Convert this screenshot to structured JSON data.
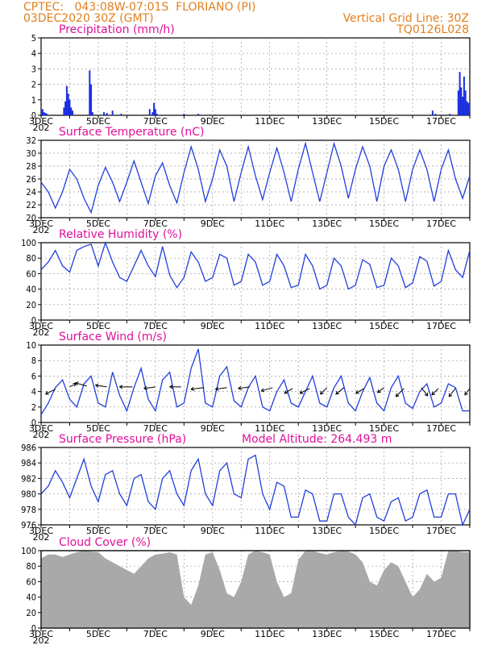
{
  "header": {
    "line1_left": "CPTEC:   043:08W-07:01S  FLORIANO (PI)",
    "line2_left": "03DEC2020 30Z (GMT)",
    "line2_right": "Vertical Grid Line: 30Z",
    "line3_right": "TQ0126L028"
  },
  "colors": {
    "header": "#e08020",
    "title": "#e0109a",
    "line": "#1f3fdc",
    "bar": "#1a2fe0",
    "cloud": "#a9a9a9"
  },
  "x_tick_labels": [
    "3DEC",
    "5DEC",
    "7DEC",
    "9DEC",
    "11DEC",
    "13DEC",
    "15DEC",
    "17DEC"
  ],
  "x_stub": "202",
  "chart_data": [
    {
      "type": "bar",
      "title": "Precipitation (mm/h)",
      "ylim": [
        0,
        5
      ],
      "yticks": [
        "0",
        "1",
        "2",
        "3",
        "4",
        "5"
      ],
      "xlim": [
        3.0,
        18.0
      ],
      "x": [
        3.05,
        3.1,
        3.15,
        3.2,
        3.8,
        3.85,
        3.9,
        3.95,
        4.0,
        4.05,
        4.1,
        4.7,
        4.75,
        4.8,
        5.2,
        5.3,
        5.5,
        5.8,
        6.8,
        6.9,
        6.95,
        7.0,
        7.05,
        8.0,
        8.5,
        9.1,
        16.7,
        16.8,
        17.3,
        17.6,
        17.65,
        17.7,
        17.75,
        17.8,
        17.85,
        17.9,
        17.95
      ],
      "values": [
        0.4,
        0.2,
        0.15,
        0.1,
        0.5,
        0.9,
        1.9,
        1.4,
        1.0,
        0.5,
        0.3,
        2.9,
        2.0,
        0.2,
        0.2,
        0.15,
        0.3,
        0.1,
        0.4,
        0.2,
        0.8,
        0.4,
        0.1,
        0.1,
        0.1,
        0.05,
        0.3,
        0.1,
        0.1,
        1.6,
        2.8,
        1.8,
        1.2,
        2.5,
        1.6,
        0.9,
        0.8
      ]
    },
    {
      "type": "line",
      "title": "Surface Temperature (nC)",
      "ylim": [
        20,
        32
      ],
      "yticks": [
        "20",
        "22",
        "24",
        "26",
        "28",
        "30",
        "32"
      ],
      "xlim": [
        3.0,
        18.0
      ],
      "x": [
        3.0,
        3.25,
        3.5,
        3.75,
        4.0,
        4.25,
        4.5,
        4.75,
        5.0,
        5.25,
        5.5,
        5.75,
        6.0,
        6.25,
        6.5,
        6.75,
        7.0,
        7.25,
        7.5,
        7.75,
        8.0,
        8.25,
        8.5,
        8.75,
        9.0,
        9.25,
        9.5,
        9.75,
        10.0,
        10.25,
        10.5,
        10.75,
        11.0,
        11.25,
        11.5,
        11.75,
        12.0,
        12.25,
        12.5,
        12.75,
        13.0,
        13.25,
        13.5,
        13.75,
        14.0,
        14.25,
        14.5,
        14.75,
        15.0,
        15.25,
        15.5,
        15.75,
        16.0,
        16.25,
        16.5,
        16.75,
        17.0,
        17.25,
        17.5,
        17.75,
        18.0
      ],
      "values": [
        25.5,
        24,
        21.5,
        24,
        27.5,
        26,
        23,
        20.8,
        25,
        27.8,
        25.5,
        22.5,
        25.5,
        28.8,
        25.5,
        22.2,
        26.5,
        28.5,
        25,
        22.3,
        27,
        31,
        27.5,
        22.5,
        26,
        30.5,
        28,
        22.5,
        27,
        31,
        26.5,
        22.8,
        27,
        30.8,
        27,
        22.5,
        27.5,
        31.5,
        27,
        22.5,
        27,
        31.5,
        28,
        23,
        27.5,
        31,
        28,
        22.5,
        28,
        30.5,
        27.5,
        22.5,
        27.5,
        30.5,
        27.5,
        22.5,
        27.5,
        30.5,
        26,
        23,
        26.5
      ]
    },
    {
      "type": "line",
      "title": "Relative Humidity (%)",
      "ylim": [
        0,
        100
      ],
      "yticks": [
        "0",
        "20",
        "40",
        "60",
        "80",
        "100"
      ],
      "xlim": [
        3.0,
        18.0
      ],
      "x": [
        3.0,
        3.25,
        3.5,
        3.75,
        4.0,
        4.25,
        4.5,
        4.75,
        5.0,
        5.25,
        5.5,
        5.75,
        6.0,
        6.25,
        6.5,
        6.75,
        7.0,
        7.25,
        7.5,
        7.75,
        8.0,
        8.25,
        8.5,
        8.75,
        9.0,
        9.25,
        9.5,
        9.75,
        10.0,
        10.25,
        10.5,
        10.75,
        11.0,
        11.25,
        11.5,
        11.75,
        12.0,
        12.25,
        12.5,
        12.75,
        13.0,
        13.25,
        13.5,
        13.75,
        14.0,
        14.25,
        14.5,
        14.75,
        15.0,
        15.25,
        15.5,
        15.75,
        16.0,
        16.25,
        16.5,
        16.75,
        17.0,
        17.25,
        17.5,
        17.75,
        18.0
      ],
      "values": [
        65,
        75,
        90,
        70,
        62,
        90,
        95,
        98,
        70,
        100,
        75,
        55,
        50,
        70,
        90,
        70,
        56,
        95,
        58,
        42,
        55,
        88,
        75,
        50,
        55,
        85,
        80,
        45,
        50,
        85,
        75,
        45,
        50,
        85,
        70,
        42,
        45,
        85,
        70,
        40,
        45,
        80,
        70,
        40,
        45,
        78,
        72,
        42,
        45,
        80,
        70,
        42,
        48,
        82,
        76,
        44,
        50,
        90,
        65,
        55,
        90
      ]
    },
    {
      "type": "line",
      "title": "Surface Wind (m/s)",
      "ylim": [
        0,
        10
      ],
      "yticks": [
        "0",
        "2",
        "4",
        "6",
        "8",
        "10"
      ],
      "xlim": [
        3.0,
        18.0
      ],
      "x": [
        3.0,
        3.25,
        3.5,
        3.75,
        4.0,
        4.25,
        4.5,
        4.75,
        5.0,
        5.25,
        5.5,
        5.75,
        6.0,
        6.25,
        6.5,
        6.75,
        7.0,
        7.25,
        7.5,
        7.75,
        8.0,
        8.25,
        8.5,
        8.75,
        9.0,
        9.25,
        9.5,
        9.75,
        10.0,
        10.25,
        10.5,
        10.75,
        11.0,
        11.25,
        11.5,
        11.75,
        12.0,
        12.25,
        12.5,
        12.75,
        13.0,
        13.25,
        13.5,
        13.75,
        14.0,
        14.25,
        14.5,
        14.75,
        15.0,
        15.25,
        15.5,
        15.75,
        16.0,
        16.25,
        16.5,
        16.75,
        17.0,
        17.25,
        17.5,
        17.75,
        18.0
      ],
      "values": [
        1,
        2.5,
        4.5,
        5.5,
        3,
        2,
        5,
        6,
        2.5,
        2,
        6.5,
        3.5,
        1.5,
        4.5,
        7,
        3,
        1.5,
        5.5,
        6.5,
        2,
        2.5,
        7,
        9.5,
        2.5,
        2,
        6,
        7.2,
        2.8,
        2,
        4.5,
        6,
        2,
        1.5,
        4,
        5.5,
        2.5,
        2,
        4,
        6,
        2.5,
        2,
        4.5,
        6,
        2.5,
        1.5,
        4,
        5.8,
        2.5,
        1.5,
        4.5,
        6,
        2.5,
        1.8,
        4,
        5,
        2,
        2.5,
        5,
        4.5,
        1.5,
        1.5
      ],
      "barb_x": [
        3.5,
        4.0,
        4.6,
        5.3,
        6.2,
        7.0,
        7.9,
        8.7,
        9.5,
        10.3,
        11.1,
        11.8,
        12.4,
        13.0,
        13.6,
        14.3,
        15.0,
        15.7,
        16.3,
        16.9,
        17.5,
        18.0
      ],
      "barb_y": [
        4.3,
        4.6,
        4.7,
        4.6,
        4.6,
        4.6,
        4.6,
        4.5,
        4.5,
        4.6,
        4.5,
        4.4,
        4.4,
        4.5,
        4.5,
        4.4,
        4.5,
        4.4,
        4.5,
        4.4,
        4.4,
        4.4
      ],
      "barb_dx_px": [
        -12,
        8,
        -14,
        -14,
        -16,
        -14,
        -14,
        -16,
        -14,
        -14,
        -14,
        -10,
        -12,
        -8,
        -10,
        -10,
        -8,
        -10,
        8,
        -8,
        -8,
        -6
      ],
      "barb_dy_px": [
        6,
        -4,
        -4,
        -2,
        0,
        2,
        0,
        2,
        2,
        2,
        4,
        6,
        6,
        8,
        8,
        6,
        6,
        10,
        10,
        8,
        10,
        8
      ]
    },
    {
      "type": "line",
      "title": "Surface Pressure (hPa)",
      "annotation": "Model Altitude: 264.493 m",
      "ylim": [
        976,
        986
      ],
      "yticks": [
        "976",
        "978",
        "980",
        "982",
        "984",
        "986"
      ],
      "xlim": [
        3.0,
        18.0
      ],
      "x": [
        3.0,
        3.25,
        3.5,
        3.75,
        4.0,
        4.25,
        4.5,
        4.75,
        5.0,
        5.25,
        5.5,
        5.75,
        6.0,
        6.25,
        6.5,
        6.75,
        7.0,
        7.25,
        7.5,
        7.75,
        8.0,
        8.25,
        8.5,
        8.75,
        9.0,
        9.25,
        9.5,
        9.75,
        10.0,
        10.25,
        10.5,
        10.75,
        11.0,
        11.25,
        11.5,
        11.75,
        12.0,
        12.25,
        12.5,
        12.75,
        13.0,
        13.25,
        13.5,
        13.75,
        14.0,
        14.25,
        14.5,
        14.75,
        15.0,
        15.25,
        15.5,
        15.75,
        16.0,
        16.25,
        16.5,
        16.75,
        17.0,
        17.25,
        17.5,
        17.75,
        18.0
      ],
      "values": [
        980,
        981,
        983,
        981.5,
        979.5,
        982,
        984.5,
        981,
        979,
        982.5,
        983,
        980,
        978.5,
        982,
        982.5,
        979,
        978,
        982,
        983,
        980,
        978.5,
        983,
        984.5,
        980,
        978.5,
        983,
        984,
        980,
        979.5,
        984.5,
        985,
        980,
        978,
        981.5,
        981,
        977,
        977,
        980.5,
        980,
        976.5,
        976.5,
        980,
        980,
        977,
        976,
        979.5,
        980,
        977,
        976.5,
        979,
        979.5,
        976.5,
        977,
        980,
        980.5,
        977,
        977,
        980,
        980,
        976,
        978
      ]
    },
    {
      "type": "area",
      "title": "Cloud Cover (%)",
      "ylim": [
        0,
        100
      ],
      "yticks": [
        "0",
        "20",
        "40",
        "60",
        "80",
        "100"
      ],
      "xlim": [
        3.0,
        18.0
      ],
      "x": [
        3.0,
        3.25,
        3.5,
        3.75,
        4.0,
        4.25,
        4.5,
        4.75,
        5.0,
        5.25,
        5.5,
        5.75,
        6.0,
        6.25,
        6.5,
        6.75,
        7.0,
        7.25,
        7.5,
        7.75,
        8.0,
        8.25,
        8.5,
        8.75,
        9.0,
        9.25,
        9.5,
        9.75,
        10.0,
        10.25,
        10.5,
        10.75,
        11.0,
        11.25,
        11.5,
        11.75,
        12.0,
        12.25,
        12.5,
        12.75,
        13.0,
        13.25,
        13.5,
        13.75,
        14.0,
        14.25,
        14.5,
        14.75,
        15.0,
        15.25,
        15.5,
        15.75,
        16.0,
        16.25,
        16.5,
        16.75,
        17.0,
        17.25,
        17.5,
        17.75,
        18.0
      ],
      "values": [
        90,
        95,
        95,
        92,
        95,
        98,
        100,
        99,
        98,
        90,
        85,
        80,
        75,
        70,
        80,
        90,
        95,
        96,
        98,
        95,
        40,
        30,
        55,
        95,
        98,
        75,
        45,
        40,
        60,
        95,
        100,
        98,
        95,
        60,
        40,
        45,
        88,
        100,
        100,
        97,
        95,
        98,
        100,
        99,
        95,
        85,
        60,
        55,
        75,
        85,
        80,
        60,
        40,
        50,
        70,
        60,
        65,
        100,
        100,
        98,
        98
      ]
    }
  ]
}
